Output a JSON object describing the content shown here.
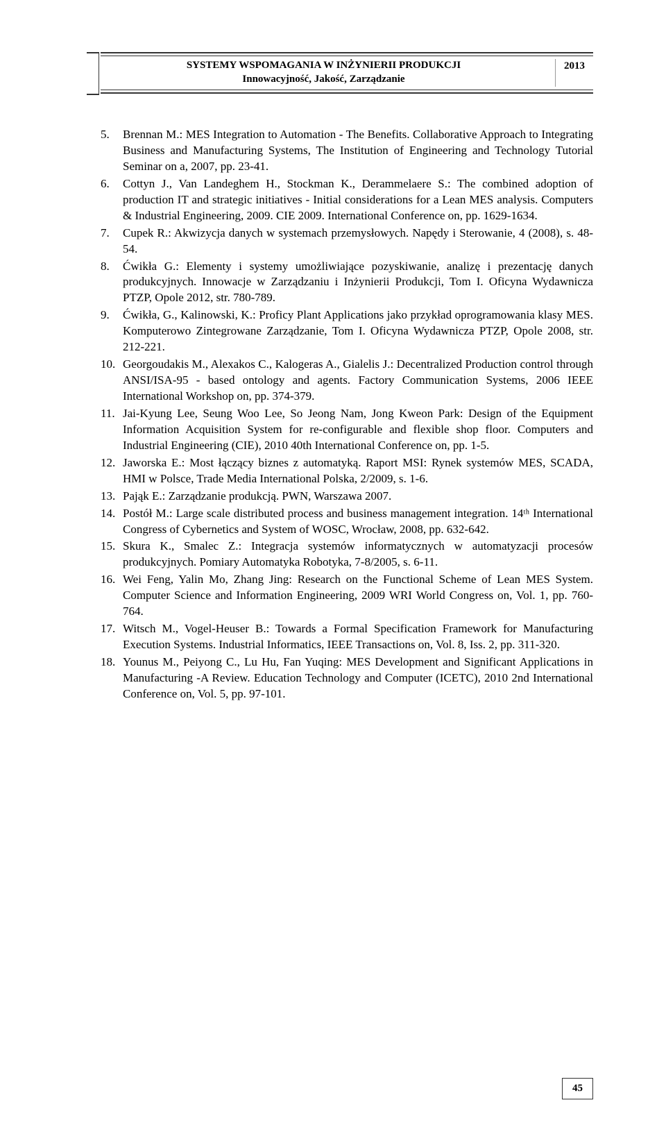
{
  "header": {
    "title_line1": "SYSTEMY WSPOMAGANIA W INŻYNIERII PRODUKCJI",
    "title_line2": "Innowacyjność, Jakość, Zarządzanie",
    "year": "2013"
  },
  "references": [
    {
      "num": "5.",
      "text": "Brennan M.: MES Integration to Automation - The Benefits. Collaborative Approach to Integrating Business and Manufacturing Systems, The Institution of Engineering and Technology Tutorial Seminar on a, 2007, pp. 23-41."
    },
    {
      "num": "6.",
      "text": "Cottyn J., Van Landeghem H., Stockman K., Derammelaere S.: The combined adoption of production IT and strategic initiatives - Initial considerations for a Lean MES analysis. Computers & Industrial Engineering, 2009. CIE 2009. International Conference on, pp. 1629-1634."
    },
    {
      "num": "7.",
      "text": "Cupek R.: Akwizycja danych w systemach przemysłowych. Napędy i Sterowanie, 4 (2008), s. 48-54."
    },
    {
      "num": "8.",
      "text": "Ćwikła G.: Elementy i systemy umożliwiające pozyskiwanie, analizę i prezentację danych produkcyjnych. Innowacje w Zarządzaniu i Inżynierii Produkcji, Tom I. Oficyna Wydawnicza PTZP, Opole 2012, str. 780-789."
    },
    {
      "num": "9.",
      "text": "Ćwikła, G., Kalinowski, K.: Proficy Plant Applications jako przykład oprogramowania klasy MES. Komputerowo Zintegrowane Zarządzanie, Tom I. Oficyna Wydawnicza PTZP, Opole 2008, str. 212-221."
    },
    {
      "num": "10.",
      "text": "Georgoudakis M., Alexakos C., Kalogeras A., Gialelis J.: Decentralized Production control through ANSI/ISA-95 - based ontology and agents. Factory Communication Systems, 2006 IEEE International Workshop on, pp. 374-379."
    },
    {
      "num": "11.",
      "text": "Jai-Kyung Lee, Seung Woo Lee, So Jeong Nam, Jong Kweon Park: Design of the Equipment Information Acquisition System for re-configurable and flexible shop floor. Computers and Industrial Engineering (CIE), 2010 40th International Conference on, pp. 1-5."
    },
    {
      "num": "12.",
      "text": "Jaworska E.: Most łączący biznes z automatyką. Raport MSI: Rynek systemów MES, SCADA, HMI w Polsce, Trade Media International Polska, 2/2009, s. 1-6."
    },
    {
      "num": "13.",
      "text": "Pająk E.: Zarządzanie produkcją. PWN, Warszawa 2007."
    },
    {
      "num": "14.",
      "text": "Postół M.: Large scale distributed process and business management integration. 14ᵗʰ International Congress of Cybernetics and System of WOSC, Wrocław, 2008, pp. 632-642."
    },
    {
      "num": "15.",
      "text": "Skura K., Smalec Z.: Integracja systemów informatycznych w automatyzacji procesów produkcyjnych. Pomiary Automatyka Robotyka, 7-8/2005, s. 6-11."
    },
    {
      "num": "16.",
      "text": "Wei Feng, Yalin Mo, Zhang Jing: Research on the Functional Scheme of Lean MES System. Computer Science and Information Engineering, 2009 WRI World Congress on, Vol. 1, pp. 760-764."
    },
    {
      "num": "17.",
      "text": "Witsch M., Vogel-Heuser B.: Towards a Formal Specification Framework for Manufacturing Execution Systems. Industrial Informatics, IEEE Transactions on, Vol. 8, Iss. 2, pp. 311-320."
    },
    {
      "num": "18.",
      "text": "Younus M., Peiyong C., Lu Hu, Fan Yuqing: MES Development and Significant Applications in Manufacturing -A Review. Education Technology and Computer (ICETC), 2010 2nd International Conference on, Vol. 5, pp. 97-101."
    }
  ],
  "page_number": "45"
}
